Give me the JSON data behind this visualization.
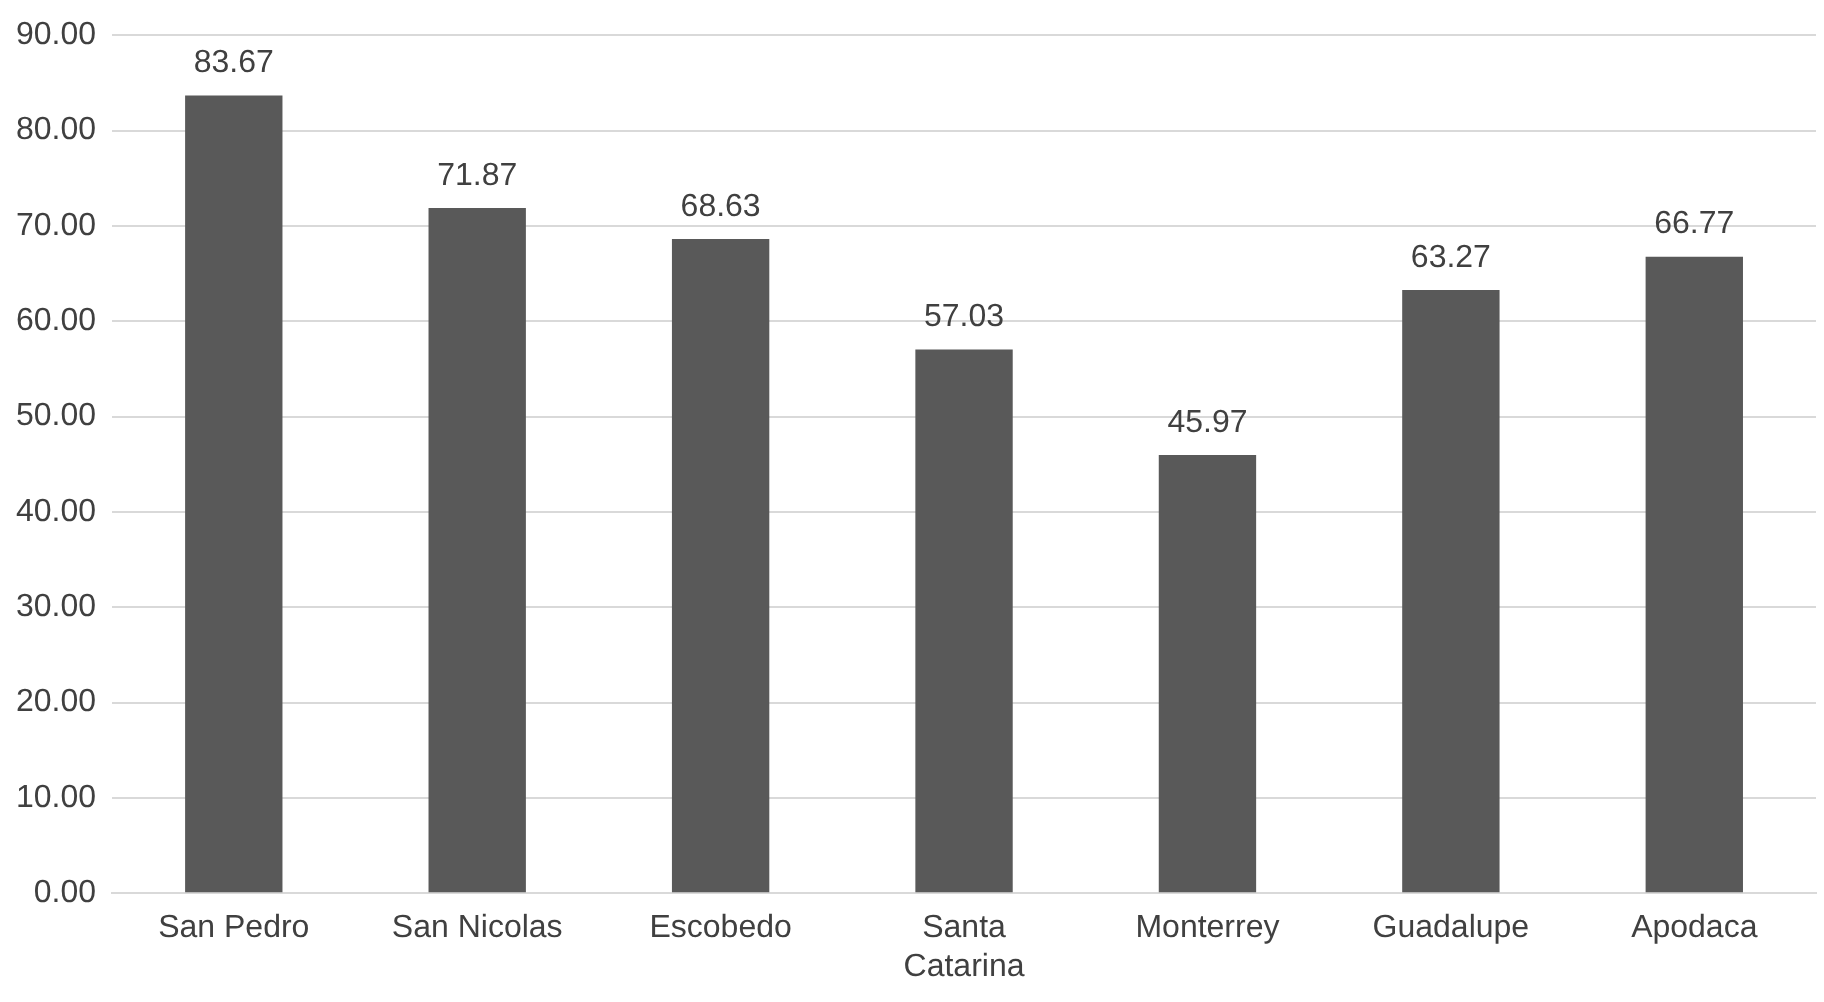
{
  "chart_data": {
    "type": "bar",
    "categories": [
      "San Pedro",
      "San Nicolas",
      "Escobedo",
      "Santa Catarina",
      "Monterrey",
      "Guadalupe",
      "Apodaca"
    ],
    "values": [
      83.67,
      71.87,
      68.63,
      57.03,
      45.97,
      63.27,
      66.77
    ],
    "color": "#595959",
    "ylim": [
      0,
      90
    ],
    "yticks": [
      {
        "value": 0,
        "label": "0.00"
      },
      {
        "value": 10,
        "label": "10.00"
      },
      {
        "value": 20,
        "label": "20.00"
      },
      {
        "value": 30,
        "label": "30.00"
      },
      {
        "value": 40,
        "label": "40.00"
      },
      {
        "value": 50,
        "label": "50.00"
      },
      {
        "value": 60,
        "label": "60.00"
      },
      {
        "value": 70,
        "label": "70.00"
      },
      {
        "value": 80,
        "label": "80.00"
      },
      {
        "value": 90,
        "label": "90.00"
      }
    ],
    "grid": "y",
    "legend": false,
    "data_labels": true
  }
}
